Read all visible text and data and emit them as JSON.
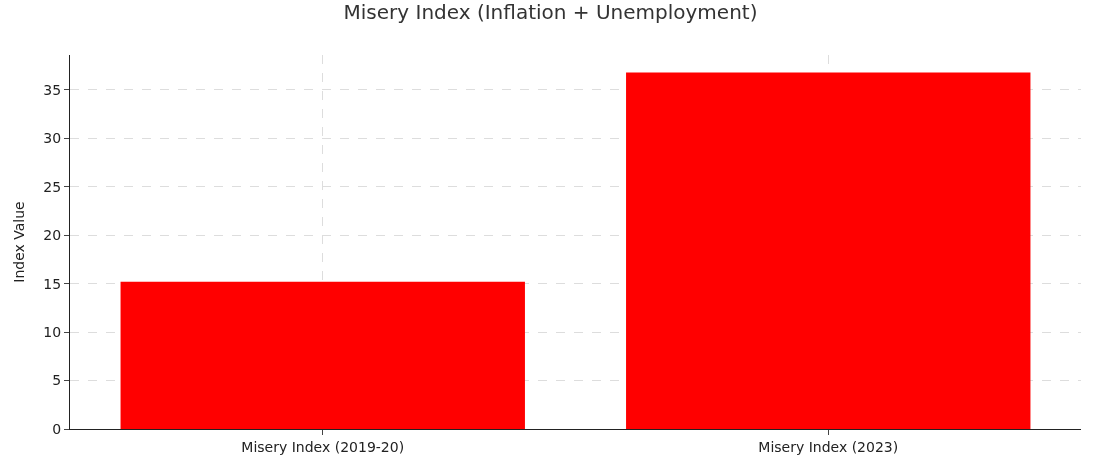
{
  "chart_data": {
    "type": "bar",
    "title": "Misery Index (Inflation + Unemployment)",
    "ylabel": "Index Value",
    "categories": [
      "Misery Index (2019-20)",
      "Misery Index (2023)"
    ],
    "values": [
      15.2,
      36.8
    ],
    "color": "#ff0000",
    "ylim": [
      0,
      38.6
    ],
    "yticks": [
      0,
      5,
      10,
      15,
      20,
      25,
      30,
      35
    ],
    "grid": true
  }
}
